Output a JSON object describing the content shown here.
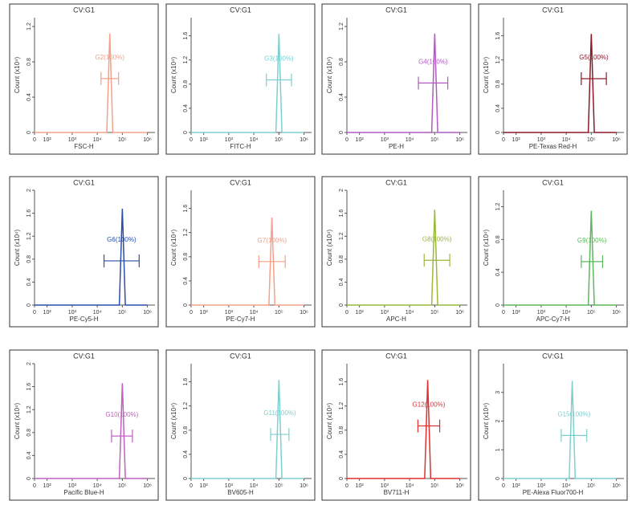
{
  "chart_data": [
    {
      "type": "line",
      "title": "CV:G1",
      "xlabel": "FSC-H",
      "ylabel": "Count (x10⁴)",
      "xscale": "log",
      "xlim": [
        0,
        2000000
      ],
      "xticks": [
        0,
        {
          "value": 100,
          "label": "10²"
        },
        {
          "value": 1000,
          "label": "10³"
        },
        {
          "value": 10000,
          "label": "10⁴"
        },
        {
          "value": 100000,
          "label": "10⁵"
        },
        {
          "value": 1000000,
          "label": "10⁶"
        }
      ],
      "ylim": [
        0,
        1.3
      ],
      "yticks": [
        0,
        0.4,
        0.8,
        1.2
      ],
      "x": [
        0,
        23993,
        31623,
        41679,
        1000000
      ],
      "values": [
        0,
        0,
        1.12,
        0,
        0
      ],
      "color": "#f4a08a",
      "gate": {
        "label": "G2(100%)",
        "range": [
          14125,
          70795
        ],
        "level": 0.61
      }
    },
    {
      "type": "line",
      "title": "CV:G1",
      "xlabel": "FITC-H",
      "ylabel": "Count (x10⁴)",
      "xscale": "log",
      "xlim": [
        0,
        2000000
      ],
      "xticks": [
        0,
        {
          "value": 100,
          "label": "10²"
        },
        {
          "value": 1000,
          "label": "10³"
        },
        {
          "value": 10000,
          "label": "10⁴"
        },
        {
          "value": 100000,
          "label": "10⁵"
        },
        {
          "value": 1000000,
          "label": "10⁶"
        }
      ],
      "ylim": [
        0,
        1.9
      ],
      "yticks": [
        0,
        0.4,
        0.8,
        1.2,
        1.6
      ],
      "x": [
        0,
        75873,
        100000,
        131800,
        1000000
      ],
      "values": [
        0,
        0,
        1.63,
        0,
        0
      ],
      "color": "#7ecfcf",
      "gate": {
        "label": "G3(100%)",
        "range": [
          31623,
          316228
        ],
        "level": 0.87
      }
    },
    {
      "type": "line",
      "title": "CV:G1",
      "xlabel": "PE-H",
      "ylabel": "Count (x10⁴)",
      "xscale": "log",
      "xlim": [
        0,
        2000000
      ],
      "xticks": [
        0,
        {
          "value": 100,
          "label": "10²"
        },
        {
          "value": 1000,
          "label": "10³"
        },
        {
          "value": 10000,
          "label": "10⁴"
        },
        {
          "value": 100000,
          "label": "10⁵"
        },
        {
          "value": 1000000,
          "label": "10⁶"
        }
      ],
      "ylim": [
        0,
        1.3
      ],
      "yticks": [
        0,
        0.4,
        0.8,
        1.2
      ],
      "x": [
        0,
        75873,
        100000,
        131800,
        1000000
      ],
      "values": [
        0,
        0,
        1.12,
        0,
        0
      ],
      "color": "#b05cc0",
      "gate": {
        "label": "G4(100%)",
        "range": [
          22387,
          331131
        ],
        "level": 0.56
      }
    },
    {
      "type": "line",
      "title": "CV:G1",
      "xlabel": "PE-Texas Red-H",
      "ylabel": "Count (x10⁴)",
      "xscale": "log",
      "xlim": [
        0,
        2000000
      ],
      "xticks": [
        0,
        {
          "value": 100,
          "label": "10²"
        },
        {
          "value": 1000,
          "label": "10³"
        },
        {
          "value": 10000,
          "label": "10⁴"
        },
        {
          "value": 100000,
          "label": "10⁵"
        },
        {
          "value": 1000000,
          "label": "10⁶"
        }
      ],
      "ylim": [
        0,
        1.9
      ],
      "yticks": [
        0,
        0.4,
        0.8,
        1.2,
        1.6
      ],
      "x": [
        0,
        75873,
        100000,
        131800,
        1000000
      ],
      "values": [
        0,
        0,
        1.63,
        0,
        0
      ],
      "color": "#8b1a2a",
      "gate": {
        "label": "G5(100%)",
        "range": [
          39811,
          398107
        ],
        "level": 0.89
      }
    },
    {
      "type": "line",
      "title": "CV:G1",
      "xlabel": "PE-Cy5-H",
      "ylabel": "Count (x10⁴)",
      "xscale": "log",
      "xlim": [
        0,
        2000000
      ],
      "xticks": [
        0,
        {
          "value": 100,
          "label": "10²"
        },
        {
          "value": 1000,
          "label": "10³"
        },
        {
          "value": 10000,
          "label": "10⁴"
        },
        {
          "value": 100000,
          "label": "10⁵"
        },
        {
          "value": 1000000,
          "label": "10⁶"
        }
      ],
      "ylim": [
        0,
        2
      ],
      "yticks": [
        0,
        0.4,
        0.8,
        1.2,
        1.6,
        2
      ],
      "x": [
        0,
        75873,
        100000,
        131800,
        1000000
      ],
      "values": [
        0,
        0,
        1.68,
        0,
        0
      ],
      "color": "#2a4fa8",
      "gate": {
        "label": "G6(100%)",
        "range": [
          18621,
          467735
        ],
        "level": 0.77
      }
    },
    {
      "type": "line",
      "title": "CV:G1",
      "xlabel": "PE-Cy7-H",
      "ylabel": "Count (x10⁴)",
      "xscale": "log",
      "xlim": [
        0,
        2000000
      ],
      "xticks": [
        0,
        {
          "value": 100,
          "label": "10²"
        },
        {
          "value": 1000,
          "label": "10³"
        },
        {
          "value": 10000,
          "label": "10⁴"
        },
        {
          "value": 100000,
          "label": "10⁵"
        },
        {
          "value": 1000000,
          "label": "10⁶"
        }
      ],
      "ylim": [
        0,
        1.9
      ],
      "yticks": [
        0,
        0.4,
        0.8,
        1.2,
        1.6
      ],
      "x": [
        0,
        39819,
        52481,
        69170,
        1000000
      ],
      "values": [
        0,
        0,
        1.45,
        0,
        0
      ],
      "color": "#f4a08a",
      "gate": {
        "label": "G7(100%)",
        "range": [
          15849,
          177828
        ],
        "level": 0.72
      }
    },
    {
      "type": "line",
      "title": "CV:G1",
      "xlabel": "APC-H",
      "ylabel": "Count (x10⁴)",
      "xscale": "log",
      "xlim": [
        0,
        2000000
      ],
      "xticks": [
        0,
        {
          "value": 100,
          "label": "10²"
        },
        {
          "value": 1000,
          "label": "10³"
        },
        {
          "value": 10000,
          "label": "10⁴"
        },
        {
          "value": 100000,
          "label": "10⁵"
        },
        {
          "value": 1000000,
          "label": "10⁶"
        }
      ],
      "ylim": [
        0,
        2
      ],
      "yticks": [
        0,
        0.4,
        0.8,
        1.2,
        1.6,
        2
      ],
      "x": [
        0,
        75873,
        100000,
        131800,
        1000000
      ],
      "values": [
        0,
        0,
        1.66,
        0,
        0
      ],
      "color": "#9ab83a",
      "gate": {
        "label": "G8(100%)",
        "range": [
          38019,
          398107
        ],
        "level": 0.78
      }
    },
    {
      "type": "line",
      "title": "CV:G1",
      "xlabel": "APC-Cy7-H",
      "ylabel": "Count (x10⁴)",
      "xscale": "log",
      "xlim": [
        0,
        2000000
      ],
      "xticks": [
        0,
        {
          "value": 100,
          "label": "10²"
        },
        {
          "value": 1000,
          "label": "10³"
        },
        {
          "value": 10000,
          "label": "10⁴"
        },
        {
          "value": 100000,
          "label": "10⁵"
        },
        {
          "value": 1000000,
          "label": "10⁶"
        }
      ],
      "ylim": [
        0,
        1.4
      ],
      "yticks": [
        0,
        0.4,
        0.8,
        1.2
      ],
      "x": [
        0,
        75873,
        100000,
        131800,
        1000000
      ],
      "values": [
        0,
        0,
        1.15,
        0,
        0
      ],
      "color": "#5cb85c",
      "gate": {
        "label": "G9(100%)",
        "range": [
          39811,
          281838
        ],
        "level": 0.53
      }
    },
    {
      "type": "line",
      "title": "CV:G1",
      "xlabel": "Pacific Blue-H",
      "ylabel": "Count (x10⁴)",
      "xscale": "log",
      "xlim": [
        0,
        2000000
      ],
      "xticks": [
        0,
        {
          "value": 100,
          "label": "10²"
        },
        {
          "value": 1000,
          "label": "10³"
        },
        {
          "value": 10000,
          "label": "10⁴"
        },
        {
          "value": 100000,
          "label": "10⁵"
        },
        {
          "value": 1000000,
          "label": "10⁶"
        }
      ],
      "ylim": [
        0,
        2
      ],
      "yticks": [
        0,
        0.4,
        0.8,
        1.2,
        1.6,
        2
      ],
      "x": [
        0,
        75873,
        100000,
        131800,
        1000000
      ],
      "values": [
        0,
        0,
        1.66,
        0,
        0
      ],
      "color": "#c060c0",
      "gate": {
        "label": "G10(100%)",
        "range": [
          37154,
          251189
        ],
        "level": 0.74
      }
    },
    {
      "type": "line",
      "title": "CV:G1",
      "xlabel": "BV605-H",
      "ylabel": "Count (x10⁴)",
      "xscale": "log",
      "xlim": [
        0,
        2000000
      ],
      "xticks": [
        0,
        {
          "value": 100,
          "label": "10²"
        },
        {
          "value": 1000,
          "label": "10³"
        },
        {
          "value": 10000,
          "label": "10⁴"
        },
        {
          "value": 100000,
          "label": "10⁵"
        },
        {
          "value": 1000000,
          "label": "10⁶"
        }
      ],
      "ylim": [
        0,
        1.9
      ],
      "yticks": [
        0,
        0.4,
        0.8,
        1.2,
        1.6
      ],
      "x": [
        0,
        75873,
        100000,
        131800,
        1000000
      ],
      "values": [
        0,
        0,
        1.63,
        0,
        0
      ],
      "color": "#7ecfcf",
      "gate": {
        "label": "G11(100%)",
        "range": [
          46774,
          251189
        ],
        "level": 0.73
      }
    },
    {
      "type": "line",
      "title": "CV:G1",
      "xlabel": "BV711-H",
      "ylabel": "Count (x10⁴)",
      "xscale": "log",
      "xlim": [
        0,
        2000000
      ],
      "xticks": [
        0,
        {
          "value": 100,
          "label": "10²"
        },
        {
          "value": 1000,
          "label": "10³"
        },
        {
          "value": 10000,
          "label": "10⁴"
        },
        {
          "value": 100000,
          "label": "10⁵"
        },
        {
          "value": 1000000,
          "label": "10⁶"
        }
      ],
      "ylim": [
        0,
        1.9
      ],
      "yticks": [
        0,
        0.4,
        0.8,
        1.2,
        1.6
      ],
      "x": [
        0,
        39819,
        52481,
        69170,
        1000000
      ],
      "values": [
        0,
        0,
        1.63,
        0,
        0
      ],
      "color": "#e03030",
      "gate": {
        "label": "G12(100%)",
        "range": [
          21380,
          158489
        ],
        "level": 0.87
      }
    },
    {
      "type": "line",
      "title": "CV:G1",
      "xlabel": "PE-Alexa Fluor700-H",
      "ylabel": "Count (x10⁴)",
      "xscale": "log",
      "xlim": [
        0,
        2000000
      ],
      "xticks": [
        0,
        {
          "value": 100,
          "label": "10²"
        },
        {
          "value": 1000,
          "label": "10³"
        },
        {
          "value": 10000,
          "label": "10⁴"
        },
        {
          "value": 100000,
          "label": "10⁵"
        },
        {
          "value": 1000000,
          "label": "10⁶"
        }
      ],
      "ylim": [
        0,
        4
      ],
      "yticks": [
        0,
        1,
        2,
        3
      ],
      "x": [
        0,
        13185,
        17378,
        22904,
        1000000
      ],
      "values": [
        0,
        0,
        3.4,
        0,
        0
      ],
      "color": "#7ecfcf",
      "gate": {
        "label": "G15(100%)",
        "range": [
          6310,
          66069
        ],
        "level": 1.5
      }
    }
  ]
}
